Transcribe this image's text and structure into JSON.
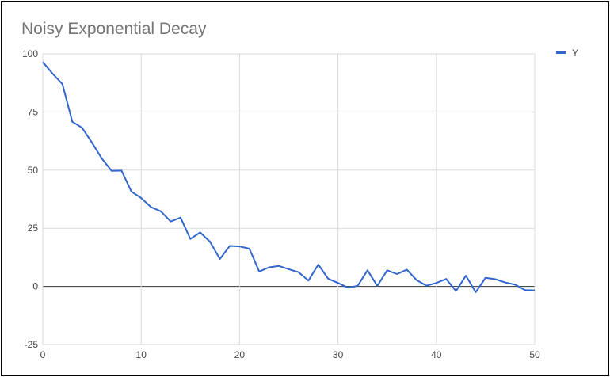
{
  "chart_data": {
    "type": "line",
    "title": "Noisy Exponential Decay",
    "xlabel": "",
    "ylabel": "",
    "xlim": [
      0,
      50
    ],
    "ylim": [
      -25,
      100
    ],
    "x_ticks": [
      0,
      10,
      20,
      30,
      40,
      50
    ],
    "y_ticks": [
      -25,
      0,
      25,
      50,
      75,
      100
    ],
    "x_tick_labels": [
      "0",
      "10",
      "20",
      "30",
      "40",
      "50"
    ],
    "y_tick_labels": [
      "-25",
      "0",
      "25",
      "50",
      "75",
      "100"
    ],
    "grid": true,
    "legend_position": "top-right",
    "colors": {
      "series": "#3366cc",
      "grid": "#d9d9d9",
      "zero_line": "#333333",
      "frame": "#000000",
      "title": "#757575"
    },
    "series": [
      {
        "name": "Y",
        "x": [
          0,
          1,
          2,
          3,
          4,
          5,
          6,
          7,
          8,
          9,
          10,
          11,
          12,
          13,
          14,
          15,
          16,
          17,
          18,
          19,
          20,
          21,
          22,
          23,
          24,
          25,
          26,
          27,
          28,
          29,
          30,
          31,
          32,
          33,
          34,
          35,
          36,
          37,
          38,
          39,
          40,
          41,
          42,
          43,
          44,
          45,
          46,
          47,
          48,
          49,
          50
        ],
        "values": [
          96.5,
          91.5,
          87,
          70.8,
          68.2,
          61.8,
          55,
          49.7,
          49.8,
          40.8,
          38,
          34.1,
          32.3,
          27.9,
          29.6,
          20.4,
          23.2,
          19.2,
          11.8,
          17.4,
          17.2,
          16.2,
          6.4,
          8.2,
          8.8,
          7.4,
          6.1,
          2.5,
          9.4,
          3.3,
          1.5,
          -0.5,
          0.2,
          6.9,
          0.2,
          6.9,
          5.3,
          7.2,
          2.7,
          0.3,
          1.5,
          3.2,
          -2,
          4.6,
          -2.5,
          3.7,
          3.1,
          1.7,
          0.8,
          -1.6,
          -1.7
        ]
      }
    ]
  }
}
